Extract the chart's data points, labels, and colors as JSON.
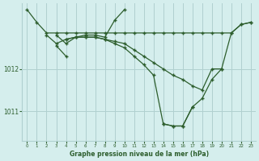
{
  "title": "Graphe pression niveau de la mer (hPa)",
  "bg_color": "#d5eeed",
  "line_color": "#2d5e2d",
  "grid_color": "#b0d0d0",
  "xlim": [
    -0.5,
    23.5
  ],
  "ylim": [
    1010.3,
    1013.55
  ],
  "yticks": [
    1011,
    1012
  ],
  "ytick_labels": [
    "1011",
    "1012"
  ],
  "xticks": [
    0,
    1,
    2,
    3,
    4,
    5,
    6,
    7,
    8,
    9,
    10,
    11,
    12,
    13,
    14,
    15,
    16,
    17,
    18,
    19,
    20,
    21,
    22,
    23
  ],
  "series": [
    {
      "x": [
        0,
        1,
        2,
        3,
        4,
        5,
        6,
        7,
        8,
        9,
        10,
        11,
        12,
        13,
        14,
        15,
        16,
        17,
        18,
        19,
        20,
        21,
        22,
        23
      ],
      "y": [
        1013.4,
        1013.1,
        1012.85,
        1012.85,
        1012.85,
        1012.85,
        1012.85,
        1012.85,
        1012.85,
        1012.85,
        1012.85,
        1012.85,
        1012.85,
        1012.85,
        1012.85,
        1012.85,
        1012.85,
        1012.85,
        1012.85,
        1012.85,
        1012.85,
        1012.85,
        1013.05,
        1013.1
      ]
    },
    {
      "x": [
        2,
        3,
        4,
        5,
        6,
        7,
        8,
        9,
        10,
        11,
        12,
        13,
        14,
        15,
        16,
        17,
        18,
        19,
        20
      ],
      "y": [
        1012.8,
        1012.6,
        1012.7,
        1012.75,
        1012.75,
        1012.75,
        1012.7,
        1012.65,
        1012.6,
        1012.45,
        1012.3,
        1012.15,
        1012.0,
        1011.85,
        1011.75,
        1011.6,
        1011.5,
        1012.0,
        1012.0
      ]
    },
    {
      "x": [
        3,
        4,
        5,
        6,
        7,
        8,
        9,
        10
      ],
      "y": [
        1012.8,
        1012.6,
        1012.75,
        1012.8,
        1012.8,
        1012.75,
        1013.15,
        1013.4
      ]
    },
    {
      "x": [
        3,
        4
      ],
      "y": [
        1012.55,
        1012.3
      ]
    },
    {
      "x": [
        4,
        5,
        6,
        7,
        8,
        9,
        10,
        11,
        12,
        13,
        14,
        15,
        16,
        17
      ],
      "y": [
        1012.7,
        1012.75,
        1012.75,
        1012.75,
        1012.7,
        1012.6,
        1012.5,
        1012.3,
        1012.1,
        1011.85,
        1010.7,
        1010.65,
        1010.65,
        1011.1
      ]
    },
    {
      "x": [
        14,
        15,
        16,
        17,
        18,
        19,
        20,
        21,
        22,
        23
      ],
      "y": [
        1010.7,
        1010.65,
        1010.65,
        1011.1,
        1011.3,
        1011.75,
        1012.0,
        1012.85,
        1013.05,
        1013.1
      ]
    }
  ]
}
